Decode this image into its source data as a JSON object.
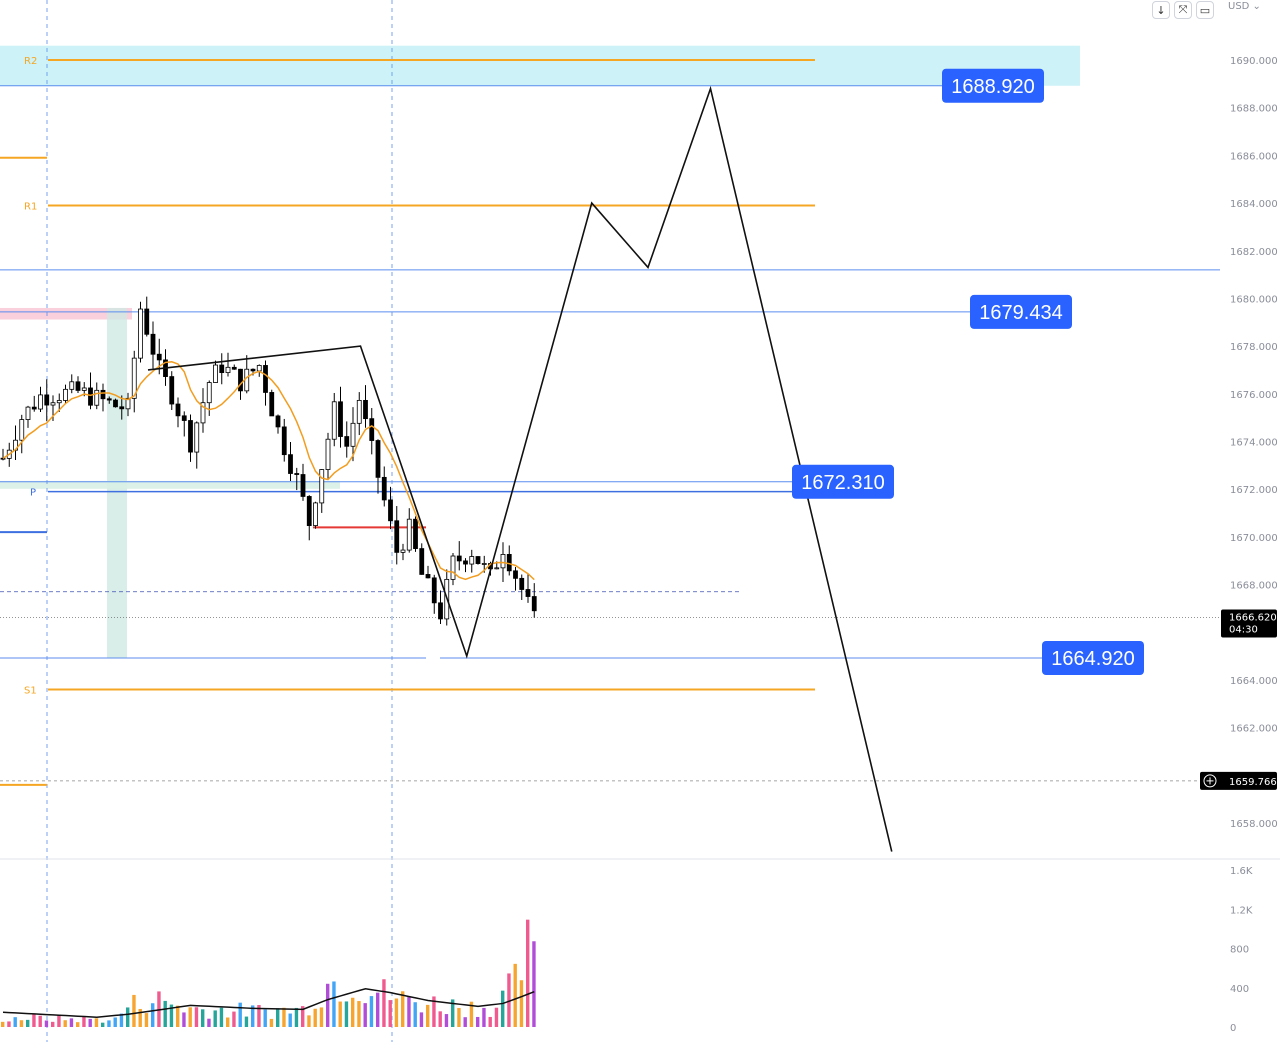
{
  "toolbar": {
    "buttons": [
      {
        "name": "download-button",
        "glyph": "↓"
      },
      {
        "name": "collapse-button",
        "glyph": "⤧"
      },
      {
        "name": "fullscreen-button",
        "glyph": "▭"
      }
    ],
    "currency": "USD ⌄"
  },
  "colors": {
    "pivot": "#f5a623",
    "level_line": "#5b8def",
    "badge_bg": "#2962ff",
    "zone_fill": "#b2ebf2",
    "projection": "#111111",
    "ma_line": "#f29d1f",
    "red_line": "#e53935",
    "vol_green": "#26a69a",
    "vol_orange": "#f7a531",
    "vol_purple": "#b04ed8",
    "vol_pink": "#ef5a8f",
    "vol_blue": "#42a5f5"
  },
  "chart_data": {
    "type": "candlestick",
    "y_axis": {
      "ticks": [
        "1690.000",
        "1688.000",
        "1686.000",
        "1684.000",
        "1682.000",
        "1680.000",
        "1678.000",
        "1676.000",
        "1674.000",
        "1672.000",
        "1670.000",
        "1668.000",
        "1666.000",
        "1664.000",
        "1662.000",
        "1660.000",
        "1658.000"
      ],
      "range": [
        1656.6,
        1691.6
      ]
    },
    "price_tags": {
      "last_price": "1666.620",
      "countdown": "04:30",
      "crosshair_price": "1659.766"
    },
    "pivots": [
      {
        "label": "R2",
        "price": 1690.0
      },
      {
        "label": "R1",
        "price": 1683.9
      },
      {
        "label": "P",
        "price": 1671.9
      },
      {
        "label": "S1",
        "price": 1663.6
      }
    ],
    "pivot_stubs": [
      1685.9,
      1670.2,
      1659.6
    ],
    "levels": [
      {
        "price": 1688.92,
        "label": "1688.920"
      },
      {
        "price": 1681.2,
        "label": ""
      },
      {
        "price": 1679.434,
        "label": "1679.434"
      },
      {
        "price": 1672.31,
        "label": "1672.310"
      },
      {
        "price": 1664.92,
        "label": "1664.920"
      }
    ],
    "zone": {
      "from": 1688.92,
      "to": 1690.6
    },
    "dashed_level": 1667.7,
    "red_level": 1670.4,
    "projection_path": [
      {
        "bar": 0,
        "price": 1677.0
      },
      {
        "bar": 34,
        "price": 1678.0
      },
      {
        "bar": 51,
        "price": 1665.0
      },
      {
        "bar": 71,
        "price": 1684.0
      },
      {
        "bar": 80,
        "price": 1681.3
      },
      {
        "bar": 90,
        "price": 1688.8
      },
      {
        "bar": 119,
        "price": 1656.8
      }
    ],
    "candles_anchor_path": [
      [
        0,
        1673.3
      ],
      [
        3,
        1675.0
      ],
      [
        6,
        1675.9
      ],
      [
        12,
        1676.1
      ],
      [
        18,
        1675.5
      ],
      [
        20,
        1675.4
      ],
      [
        22,
        1679.6
      ],
      [
        25,
        1677.0
      ],
      [
        27,
        1676.0
      ],
      [
        30,
        1674.0
      ],
      [
        33,
        1676.5
      ],
      [
        35,
        1677.2
      ],
      [
        38,
        1676.5
      ],
      [
        41,
        1677.2
      ],
      [
        44,
        1674.5
      ],
      [
        47,
        1672.4
      ],
      [
        49,
        1670.6
      ],
      [
        51,
        1673.0
      ],
      [
        53,
        1675.3
      ],
      [
        55,
        1673.8
      ],
      [
        57,
        1675.8
      ],
      [
        59,
        1673.6
      ],
      [
        61,
        1671.5
      ],
      [
        63,
        1669.4
      ],
      [
        65,
        1670.3
      ],
      [
        67,
        1668.4
      ],
      [
        70,
        1666.8
      ],
      [
        72,
        1668.9
      ],
      [
        75,
        1669.4
      ],
      [
        78,
        1668.3
      ],
      [
        80,
        1669.6
      ],
      [
        83,
        1667.8
      ],
      [
        85,
        1666.5
      ]
    ],
    "volume_axis": {
      "ticks": [
        "1.6K",
        "1.2K",
        "800",
        "400",
        "0"
      ],
      "range": [
        0,
        1600
      ]
    },
    "volume_anchor_path": [
      [
        0,
        110
      ],
      [
        18,
        90
      ],
      [
        20,
        250
      ],
      [
        24,
        340
      ],
      [
        30,
        220
      ],
      [
        40,
        190
      ],
      [
        48,
        210
      ],
      [
        52,
        520
      ],
      [
        56,
        560
      ],
      [
        60,
        430
      ],
      [
        64,
        330
      ],
      [
        68,
        290
      ],
      [
        72,
        260
      ],
      [
        76,
        240
      ],
      [
        79,
        250
      ],
      [
        82,
        520
      ],
      [
        84,
        900
      ],
      [
        85,
        740
      ]
    ],
    "volume_ma_anchor_path": [
      [
        0,
        150
      ],
      [
        15,
        100
      ],
      [
        20,
        130
      ],
      [
        30,
        220
      ],
      [
        40,
        190
      ],
      [
        48,
        180
      ],
      [
        52,
        280
      ],
      [
        58,
        390
      ],
      [
        62,
        350
      ],
      [
        68,
        270
      ],
      [
        76,
        210
      ],
      [
        80,
        240
      ],
      [
        83,
        310
      ],
      [
        85,
        360
      ]
    ],
    "n_candles": 86
  }
}
